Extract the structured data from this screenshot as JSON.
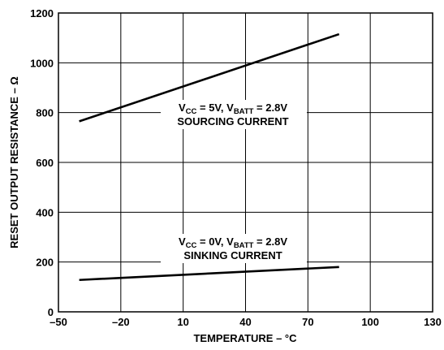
{
  "chart_data": {
    "type": "line",
    "xlabel": "TEMPERATURE – °C",
    "ylabel": "RESET OUTPUT RESISTANCE – Ω",
    "xlim": [
      -50,
      130
    ],
    "ylim": [
      0,
      1200
    ],
    "x_ticks": [
      -50,
      -20,
      10,
      40,
      70,
      100,
      130
    ],
    "x_tick_labels": [
      "–50",
      "–20",
      "10",
      "40",
      "70",
      "100",
      "130"
    ],
    "y_ticks": [
      0,
      200,
      400,
      600,
      800,
      1000,
      1200
    ],
    "y_tick_labels": [
      "0",
      "200",
      "400",
      "600",
      "800",
      "1000",
      "1200"
    ],
    "grid": true,
    "series": [
      {
        "x": [
          -40,
          85
        ],
        "y": [
          765,
          1115
        ],
        "annotation": {
          "line1": {
            "v": "V",
            "cc": "CC",
            "mid": " = 5V, V",
            "batt": "BATT",
            "end": " = 2.8V"
          },
          "line2": "SOURCING CURRENT"
        }
      },
      {
        "x": [
          -40,
          85
        ],
        "y": [
          128,
          180
        ],
        "annotation": {
          "line1": {
            "v": "V",
            "cc": "CC",
            "mid": " = 0V, V",
            "batt": "BATT",
            "end": " = 2.8V"
          },
          "line2": "SINKING CURRENT"
        }
      }
    ]
  }
}
